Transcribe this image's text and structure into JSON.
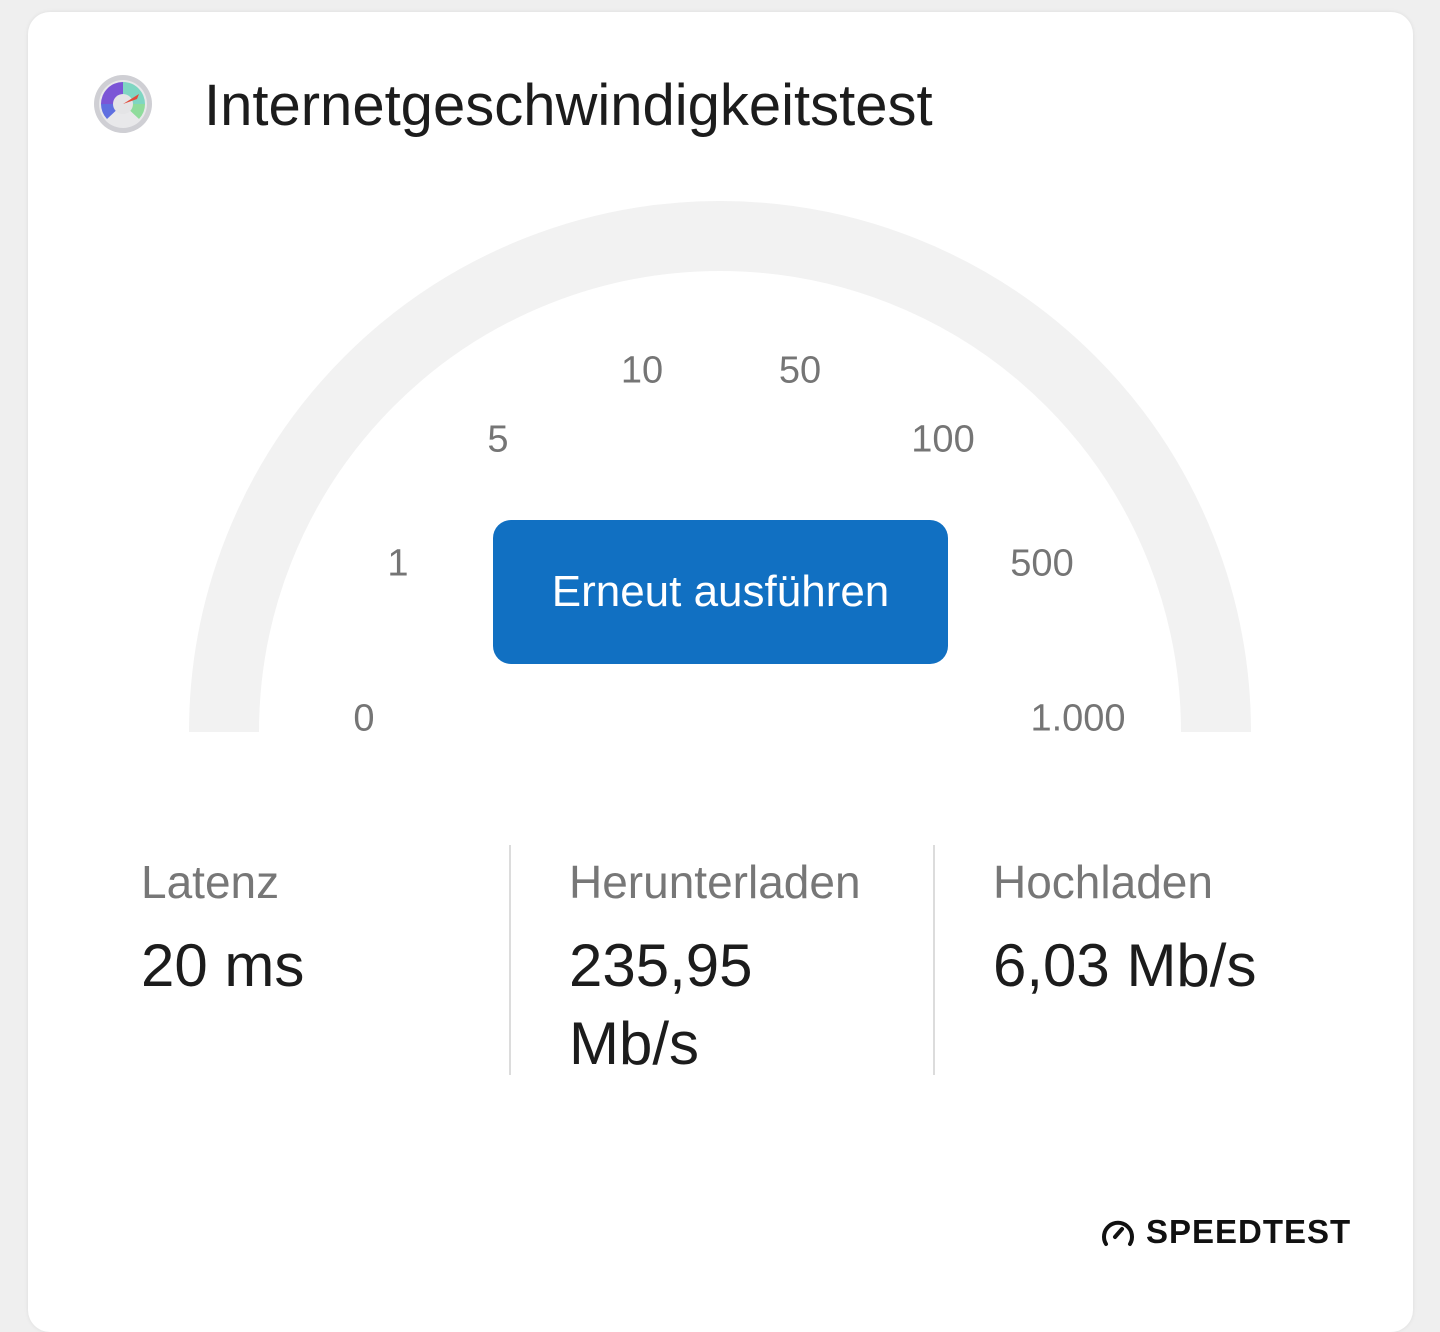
{
  "header": {
    "title": "Internetgeschwindigkeitstest",
    "icon": "speedometer-app-icon"
  },
  "gauge": {
    "scale_labels": [
      "0",
      "1",
      "5",
      "10",
      "50",
      "100",
      "500",
      "1.000"
    ],
    "track_color": "#f2f2f2"
  },
  "run_button": {
    "label": "Erneut ausführen",
    "color": "#1170c2"
  },
  "stats": [
    {
      "label": "Latenz",
      "value": "20 ms"
    },
    {
      "label": "Herunterladen",
      "value": "235,95 Mb/s"
    },
    {
      "label": "Hochladen",
      "value": "6,03 Mb/s"
    }
  ],
  "footer": {
    "brand": "SPEEDTEST",
    "icon": "speedometer-icon"
  }
}
